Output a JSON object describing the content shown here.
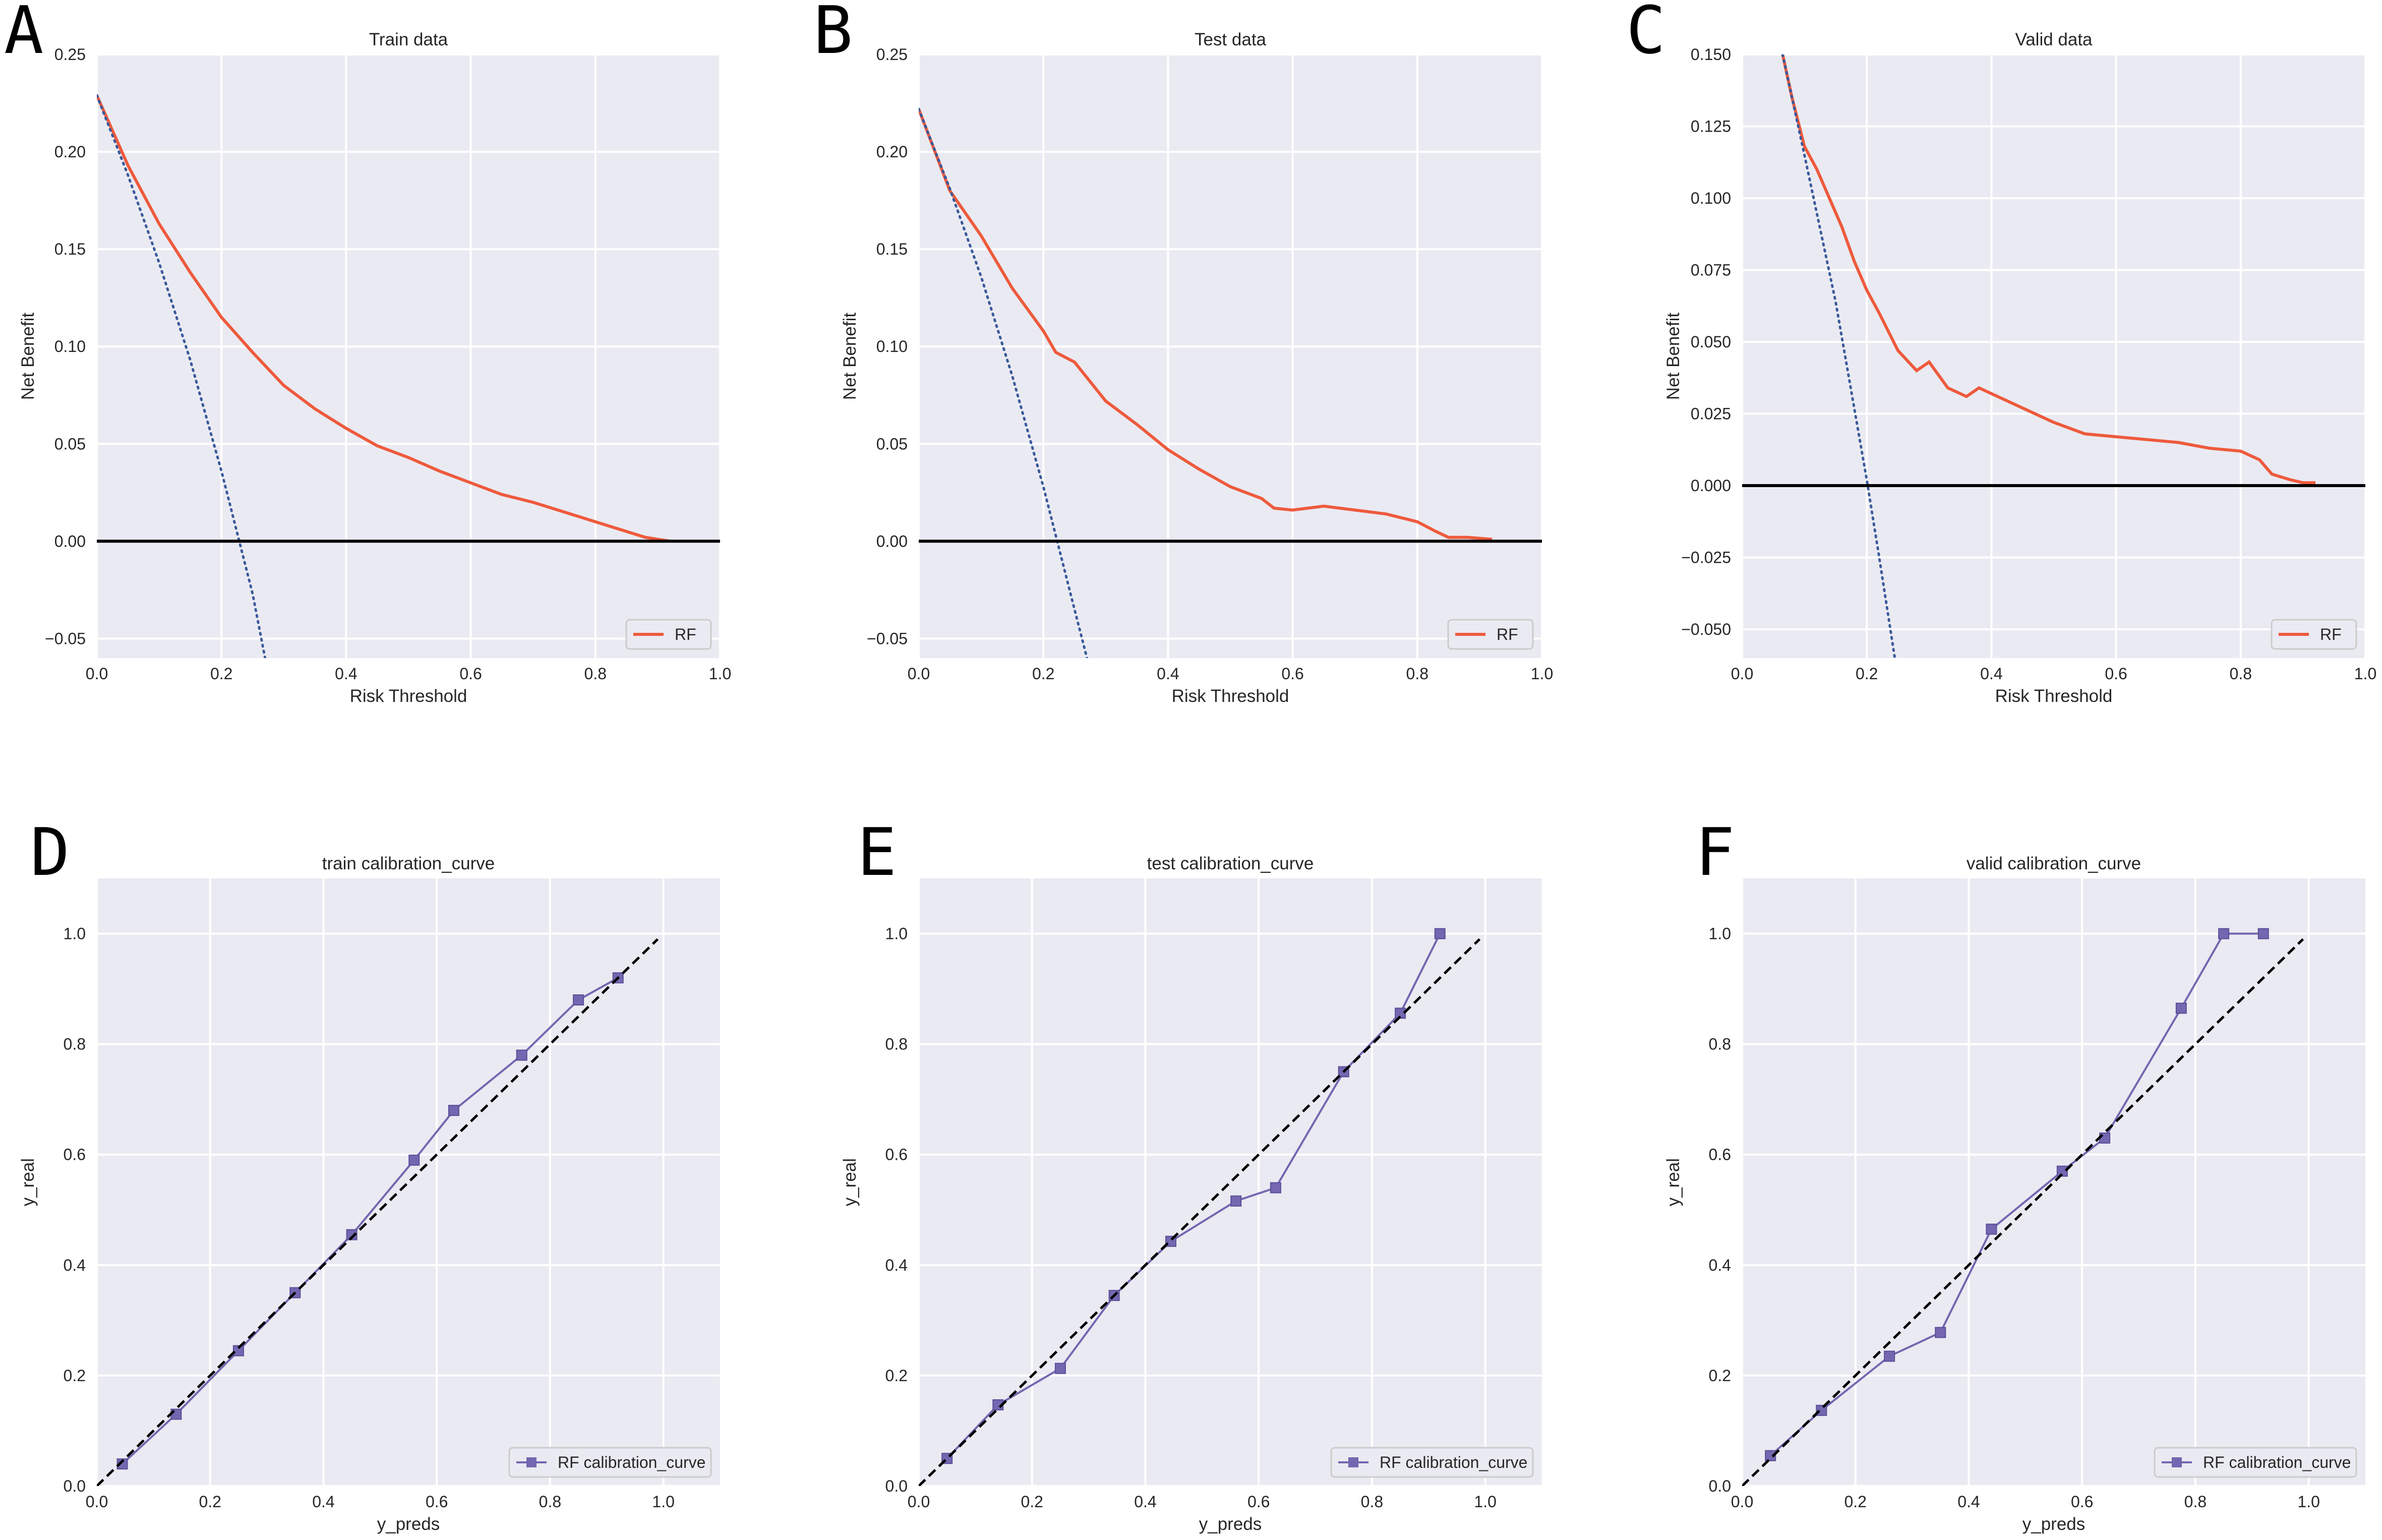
{
  "chart_data": [
    {
      "type": "line",
      "panel": "A",
      "title": "Train data",
      "xlabel": "Risk Threshold",
      "ylabel": "Net Benefit",
      "xlim": [
        0,
        1
      ],
      "ylim": [
        -0.06,
        0.25
      ],
      "xticks": [
        0.0,
        0.2,
        0.4,
        0.6,
        0.8,
        1.0
      ],
      "xtick_labels": [
        "0.0",
        "0.2",
        "0.4",
        "0.6",
        "0.8",
        "1.0"
      ],
      "yticks": [
        -0.05,
        0.0,
        0.05,
        0.1,
        0.15,
        0.2,
        0.25
      ],
      "ytick_labels": [
        "−0.05",
        "0.00",
        "0.05",
        "0.10",
        "0.15",
        "0.20",
        "0.25"
      ],
      "legend_position": "lower-right",
      "series": [
        {
          "name": "RF",
          "kind": "model",
          "color": "#ee5a3c",
          "show_in_legend": true,
          "x": [
            0.0,
            0.05,
            0.1,
            0.15,
            0.2,
            0.25,
            0.3,
            0.35,
            0.4,
            0.45,
            0.5,
            0.55,
            0.6,
            0.65,
            0.7,
            0.75,
            0.8,
            0.85,
            0.88,
            0.9,
            0.92
          ],
          "y": [
            0.229,
            0.193,
            0.163,
            0.138,
            0.115,
            0.097,
            0.08,
            0.068,
            0.058,
            0.049,
            0.043,
            0.036,
            0.03,
            0.024,
            0.02,
            0.015,
            0.01,
            0.005,
            0.002,
            0.001,
            0.0
          ]
        },
        {
          "name": "Treat all",
          "kind": "all",
          "color": "#3a5a9a",
          "show_in_legend": false,
          "x": [
            0.0,
            0.05,
            0.1,
            0.15,
            0.2,
            0.25,
            0.27
          ],
          "y": [
            0.229,
            0.188,
            0.143,
            0.093,
            0.036,
            -0.027,
            -0.06
          ]
        },
        {
          "name": "Treat none",
          "kind": "none",
          "color": "#000000",
          "show_in_legend": false,
          "x": [
            0.0,
            1.0
          ],
          "y": [
            0.0,
            0.0
          ]
        }
      ]
    },
    {
      "type": "line",
      "panel": "B",
      "title": "Test data",
      "xlabel": "Risk Threshold",
      "ylabel": "Net Benefit",
      "xlim": [
        0,
        1
      ],
      "ylim": [
        -0.06,
        0.25
      ],
      "xticks": [
        0.0,
        0.2,
        0.4,
        0.6,
        0.8,
        1.0
      ],
      "xtick_labels": [
        "0.0",
        "0.2",
        "0.4",
        "0.6",
        "0.8",
        "1.0"
      ],
      "yticks": [
        -0.05,
        0.0,
        0.05,
        0.1,
        0.15,
        0.2,
        0.25
      ],
      "ytick_labels": [
        "−0.05",
        "0.00",
        "0.05",
        "0.10",
        "0.15",
        "0.20",
        "0.25"
      ],
      "legend_position": "lower-right",
      "series": [
        {
          "name": "RF",
          "kind": "model",
          "color": "#ee5a3c",
          "show_in_legend": true,
          "x": [
            0.0,
            0.05,
            0.1,
            0.15,
            0.2,
            0.22,
            0.25,
            0.3,
            0.35,
            0.4,
            0.45,
            0.5,
            0.55,
            0.57,
            0.6,
            0.65,
            0.7,
            0.75,
            0.8,
            0.83,
            0.85,
            0.88,
            0.92
          ],
          "y": [
            0.222,
            0.18,
            0.157,
            0.13,
            0.108,
            0.097,
            0.092,
            0.072,
            0.06,
            0.047,
            0.037,
            0.028,
            0.022,
            0.017,
            0.016,
            0.018,
            0.016,
            0.014,
            0.01,
            0.005,
            0.002,
            0.002,
            0.001
          ]
        },
        {
          "name": "Treat all",
          "kind": "all",
          "color": "#3a5a9a",
          "show_in_legend": false,
          "x": [
            0.0,
            0.05,
            0.1,
            0.15,
            0.2,
            0.25,
            0.27
          ],
          "y": [
            0.222,
            0.181,
            0.136,
            0.085,
            0.028,
            -0.035,
            -0.06
          ]
        },
        {
          "name": "Treat none",
          "kind": "none",
          "color": "#000000",
          "show_in_legend": false,
          "x": [
            0.0,
            1.0
          ],
          "y": [
            0.0,
            0.0
          ]
        }
      ]
    },
    {
      "type": "line",
      "panel": "C",
      "title": "Valid data",
      "xlabel": "Risk Threshold",
      "ylabel": "Net Benefit",
      "xlim": [
        0,
        1
      ],
      "ylim": [
        -0.06,
        0.15
      ],
      "xticks": [
        0.0,
        0.2,
        0.4,
        0.6,
        0.8,
        1.0
      ],
      "xtick_labels": [
        "0.0",
        "0.2",
        "0.4",
        "0.6",
        "0.8",
        "1.0"
      ],
      "yticks": [
        -0.05,
        -0.025,
        0.0,
        0.025,
        0.05,
        0.075,
        0.1,
        0.125,
        0.15
      ],
      "ytick_labels": [
        "−0.050",
        "−0.025",
        "0.000",
        "0.025",
        "0.050",
        "0.075",
        "0.100",
        "0.125",
        "0.150"
      ],
      "legend_position": "lower-right",
      "series": [
        {
          "name": "RF",
          "kind": "model",
          "color": "#ee5a3c",
          "show_in_legend": true,
          "x": [
            0.065,
            0.08,
            0.1,
            0.12,
            0.14,
            0.16,
            0.18,
            0.2,
            0.22,
            0.25,
            0.28,
            0.3,
            0.33,
            0.36,
            0.38,
            0.4,
            0.45,
            0.5,
            0.55,
            0.6,
            0.65,
            0.7,
            0.75,
            0.8,
            0.83,
            0.85,
            0.88,
            0.9,
            0.92
          ],
          "y": [
            0.15,
            0.135,
            0.118,
            0.11,
            0.1,
            0.09,
            0.078,
            0.068,
            0.06,
            0.047,
            0.04,
            0.043,
            0.034,
            0.031,
            0.034,
            0.032,
            0.027,
            0.022,
            0.018,
            0.017,
            0.016,
            0.015,
            0.013,
            0.012,
            0.009,
            0.004,
            0.002,
            0.001,
            0.001
          ]
        },
        {
          "name": "Treat all",
          "kind": "all",
          "color": "#3a5a9a",
          "show_in_legend": false,
          "x": [
            0.065,
            0.1,
            0.15,
            0.2,
            0.22,
            0.245
          ],
          "y": [
            0.15,
            0.115,
            0.064,
            0.002,
            -0.025,
            -0.06
          ]
        },
        {
          "name": "Treat none",
          "kind": "none",
          "color": "#000000",
          "show_in_legend": false,
          "x": [
            0.0,
            1.0
          ],
          "y": [
            0.0,
            0.0
          ]
        }
      ]
    },
    {
      "type": "line",
      "panel": "D",
      "title": "train calibration_curve",
      "xlabel": "y_preds",
      "ylabel": "y_real",
      "xlim": [
        0,
        1.1
      ],
      "ylim": [
        0,
        1.1
      ],
      "xticks": [
        0.0,
        0.2,
        0.4,
        0.6,
        0.8,
        1.0
      ],
      "xtick_labels": [
        "0.0",
        "0.2",
        "0.4",
        "0.6",
        "0.8",
        "1.0"
      ],
      "yticks": [
        0.0,
        0.2,
        0.4,
        0.6,
        0.8,
        1.0
      ],
      "ytick_labels": [
        "0.0",
        "0.2",
        "0.4",
        "0.6",
        "0.8",
        "1.0"
      ],
      "legend_position": "lower-right",
      "series": [
        {
          "name": "RF calibration_curve",
          "kind": "calibration",
          "color": "#7466b0",
          "show_in_legend": true,
          "x": [
            0.045,
            0.14,
            0.25,
            0.35,
            0.45,
            0.56,
            0.63,
            0.75,
            0.85,
            0.92
          ],
          "y": [
            0.04,
            0.13,
            0.245,
            0.35,
            0.455,
            0.59,
            0.68,
            0.78,
            0.88,
            0.92
          ]
        },
        {
          "name": "Perfectly calibrated",
          "kind": "diagonal",
          "color": "#000000",
          "show_in_legend": false,
          "x": [
            0.0,
            0.99
          ],
          "y": [
            0.0,
            0.99
          ]
        }
      ]
    },
    {
      "type": "line",
      "panel": "E",
      "title": "test calibration_curve",
      "xlabel": "y_preds",
      "ylabel": "y_real",
      "xlim": [
        0,
        1.1
      ],
      "ylim": [
        0,
        1.1
      ],
      "xticks": [
        0.0,
        0.2,
        0.4,
        0.6,
        0.8,
        1.0
      ],
      "xtick_labels": [
        "0.0",
        "0.2",
        "0.4",
        "0.6",
        "0.8",
        "1.0"
      ],
      "yticks": [
        0.0,
        0.2,
        0.4,
        0.6,
        0.8,
        1.0
      ],
      "ytick_labels": [
        "0.0",
        "0.2",
        "0.4",
        "0.6",
        "0.8",
        "1.0"
      ],
      "legend_position": "lower-right",
      "series": [
        {
          "name": "RF calibration_curve",
          "kind": "calibration",
          "color": "#7466b0",
          "show_in_legend": true,
          "x": [
            0.05,
            0.14,
            0.25,
            0.345,
            0.445,
            0.56,
            0.63,
            0.75,
            0.85,
            0.92
          ],
          "y": [
            0.05,
            0.147,
            0.213,
            0.345,
            0.443,
            0.516,
            0.54,
            0.75,
            0.856,
            1.0
          ]
        },
        {
          "name": "Perfectly calibrated",
          "kind": "diagonal",
          "color": "#000000",
          "show_in_legend": false,
          "x": [
            0.0,
            0.99
          ],
          "y": [
            0.0,
            0.99
          ]
        }
      ]
    },
    {
      "type": "line",
      "panel": "F",
      "title": "valid calibration_curve",
      "xlabel": "y_preds",
      "ylabel": "y_real",
      "xlim": [
        0,
        1.1
      ],
      "ylim": [
        0,
        1.1
      ],
      "xticks": [
        0.0,
        0.2,
        0.4,
        0.6,
        0.8,
        1.0
      ],
      "xtick_labels": [
        "0.0",
        "0.2",
        "0.4",
        "0.6",
        "0.8",
        "1.0"
      ],
      "yticks": [
        0.0,
        0.2,
        0.4,
        0.6,
        0.8,
        1.0
      ],
      "ytick_labels": [
        "0.0",
        "0.2",
        "0.4",
        "0.6",
        "0.8",
        "1.0"
      ],
      "legend_position": "lower-right",
      "series": [
        {
          "name": "RF calibration_curve",
          "kind": "calibration",
          "color": "#7466b0",
          "show_in_legend": true,
          "x": [
            0.05,
            0.14,
            0.26,
            0.35,
            0.44,
            0.565,
            0.64,
            0.775,
            0.85,
            0.92
          ],
          "y": [
            0.055,
            0.137,
            0.235,
            0.278,
            0.465,
            0.57,
            0.63,
            0.865,
            1.0,
            1.0
          ]
        },
        {
          "name": "Perfectly calibrated",
          "kind": "diagonal",
          "color": "#000000",
          "show_in_legend": false,
          "x": [
            0.0,
            0.99
          ],
          "y": [
            0.0,
            0.99
          ]
        }
      ]
    }
  ]
}
